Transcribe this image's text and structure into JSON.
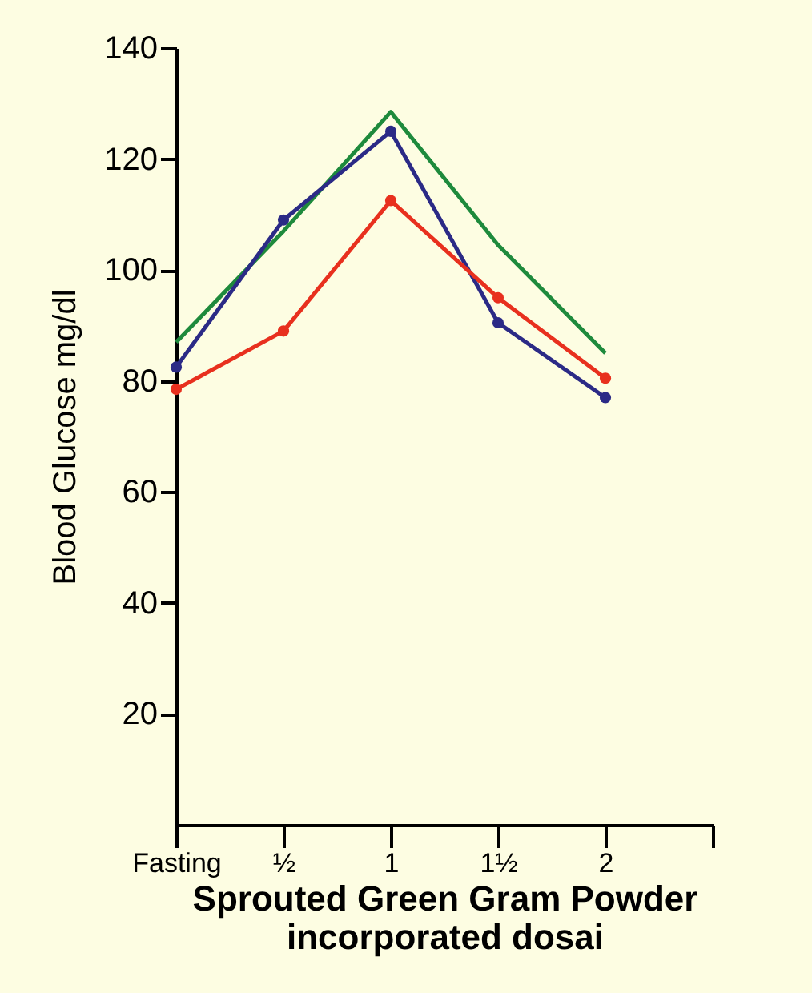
{
  "chart_data": {
    "type": "line",
    "xlabel": "Sprouted Green Gram Powder\nincorporated dosai",
    "ylabel": "Blood Glucose mg/dl",
    "categories": [
      "Fasting",
      "½",
      "1",
      "1½",
      "2",
      null
    ],
    "series": [
      {
        "color": "#1e8a3c",
        "values": [
          87,
          107,
          128.5,
          104.5,
          85,
          null
        ],
        "marker": "none"
      },
      {
        "color": "#2b2a86",
        "values": [
          82.5,
          109,
          125,
          90.5,
          77,
          null
        ],
        "marker": "circle"
      },
      {
        "color": "#e8301e",
        "values": [
          78.5,
          89,
          112.5,
          95,
          80.5,
          null
        ],
        "marker": "circle"
      }
    ],
    "ylim": [
      0,
      140
    ],
    "yticks": [
      20,
      40,
      60,
      80,
      100,
      120,
      140
    ],
    "grid": false,
    "legend": false
  }
}
